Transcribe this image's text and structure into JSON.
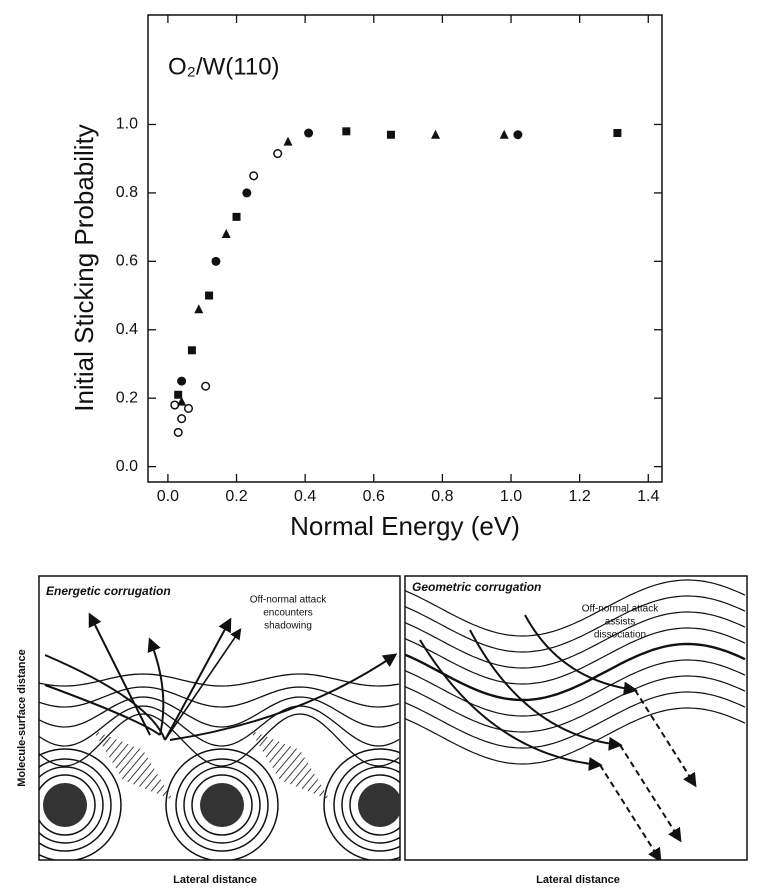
{
  "chart_data": {
    "type": "scatter",
    "annotation": "O₂/W(110)",
    "x_label": "Normal Energy (eV)",
    "y_label": "Initial Sticking Probability",
    "xlim": [
      -0.058,
      1.44
    ],
    "ylim": [
      -0.045,
      1.32
    ],
    "xticks": [
      {
        "value": 0,
        "label": "0.0"
      },
      0.2,
      0.4,
      0.6,
      0.8,
      {
        "value": 1,
        "label": "1.0"
      },
      1.2,
      1.4
    ],
    "yticks": [
      {
        "value": 0,
        "label": "0.0"
      },
      0.2,
      0.4,
      0.6,
      0.8,
      {
        "value": 1,
        "label": "1.0"
      }
    ],
    "series": [
      {
        "marker": "circle-open",
        "color": "#111111",
        "x": [
          0.02,
          0.03,
          0.04,
          0.06,
          0.11,
          0.25,
          0.32
        ],
        "values": [
          0.18,
          0.1,
          0.14,
          0.17,
          0.235,
          0.85,
          0.915
        ]
      },
      {
        "marker": "circle",
        "color": "#111111",
        "x": [
          0.04,
          0.14,
          0.23,
          0.41,
          1.02
        ],
        "values": [
          0.25,
          0.6,
          0.8,
          0.975,
          0.97
        ]
      },
      {
        "marker": "square",
        "color": "#111111",
        "x": [
          0.03,
          0.07,
          0.12,
          0.2,
          0.52,
          0.65,
          1.31
        ],
        "values": [
          0.21,
          0.34,
          0.5,
          0.73,
          0.98,
          0.97,
          0.975
        ]
      },
      {
        "marker": "triangle",
        "color": "#111111",
        "x": [
          0.04,
          0.09,
          0.17,
          0.35,
          0.78,
          0.98
        ],
        "values": [
          0.19,
          0.46,
          0.68,
          0.95,
          0.97,
          0.97
        ]
      }
    ]
  },
  "diagram_ylabel": "Molecule-surface distance",
  "diagrams": [
    {
      "title": "Energetic corrugation",
      "note": [
        "Off-normal attack",
        "encounters",
        "shadowing"
      ],
      "xlabel": "Lateral distance"
    },
    {
      "title": "Geometric corrugation",
      "note": [
        "Off-normal attack",
        "assists",
        "dissociation"
      ],
      "xlabel": "Lateral distance"
    }
  ]
}
